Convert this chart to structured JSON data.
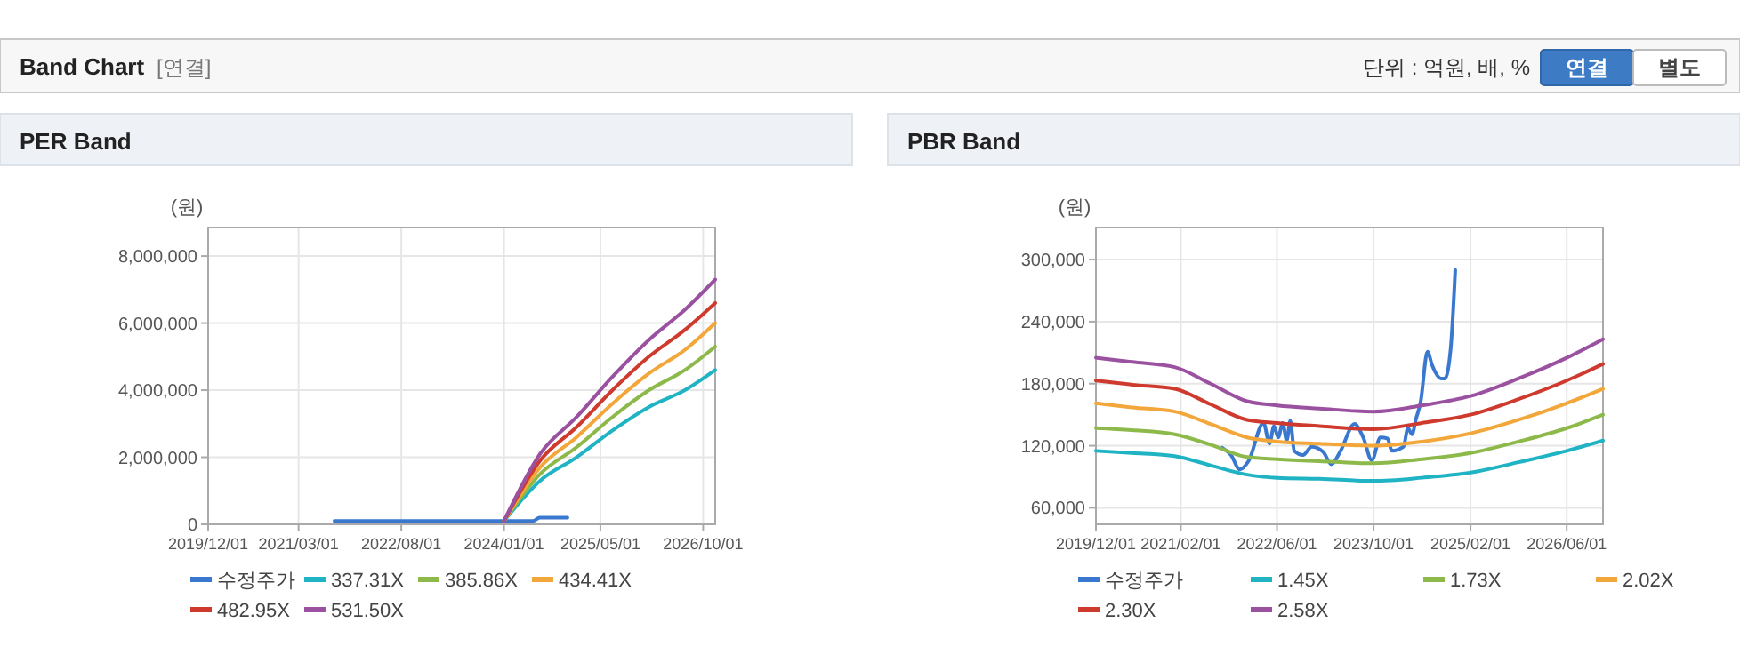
{
  "chart_data": [
    {
      "type": "other",
      "title": "Band Chart",
      "annotations": [
        "[연결]",
        "단위 : 억원, 배, %",
        "연결",
        "별도"
      ]
    },
    {
      "type": "line",
      "title": "PER Band",
      "ylabel": "(원)",
      "legend": "bottom",
      "grid": true,
      "x": [
        "2024-01-01",
        "2024-07-01",
        "2025-01-01",
        "2025-07-01",
        "2026-01-01",
        "2026-07-01",
        "2026-12-01"
      ],
      "xlim": [
        "2019-12-01",
        "2026-12-01"
      ],
      "xticks": [
        {
          "value": "2019-12-01",
          "label": "2019/12/01"
        },
        {
          "value": "2021-03-01",
          "label": "2021/03/01"
        },
        {
          "value": "2022-08-01",
          "label": "2022/08/01"
        },
        {
          "value": "2024-01-01",
          "label": "2024/01/01"
        },
        {
          "value": "2025-05-01",
          "label": "2025/05/01"
        },
        {
          "value": "2026-10-01",
          "label": "2026/10/01"
        }
      ],
      "ylim": [
        0,
        8850000
      ],
      "yticks": [
        0,
        {
          "value": 2000000,
          "label": "2,000,000"
        },
        {
          "value": 4000000,
          "label": "4,000,000"
        },
        {
          "value": 6000000,
          "label": "6,000,000"
        },
        {
          "value": 8000000,
          "label": "8,000,000"
        }
      ],
      "series": [
        {
          "name": "수정주가",
          "color": "#3a78cf",
          "x": [
            "2021-08-29",
            "2022-03-25",
            "2023-01-20",
            "2023-12-10",
            "2024-05-25",
            "2024-06-29",
            "2024-09-05",
            "2024-11-16"
          ],
          "values": [
            100000,
            100000,
            100000,
            100000,
            100000,
            200000,
            200000,
            200000
          ]
        },
        {
          "name": "337.31X",
          "color": "#1fb3c4",
          "values": [
            100000,
            1300000,
            2000000,
            2800000,
            3500000,
            4000000,
            4600000
          ]
        },
        {
          "name": "385.86X",
          "color": "#8db94b",
          "values": [
            100000,
            1500000,
            2300000,
            3200000,
            4000000,
            4600000,
            5300000
          ]
        },
        {
          "name": "434.41X",
          "color": "#f3a73b",
          "values": [
            100000,
            1700000,
            2600000,
            3600000,
            4500000,
            5200000,
            6000000
          ]
        },
        {
          "name": "482.95X",
          "color": "#cf3a2f",
          "values": [
            100000,
            1900000,
            2900000,
            4000000,
            5000000,
            5800000,
            6600000
          ]
        },
        {
          "name": "531.50X",
          "color": "#9a51a0",
          "values": [
            100000,
            2100000,
            3200000,
            4400000,
            5500000,
            6400000,
            7300000
          ]
        }
      ]
    },
    {
      "type": "line",
      "title": "PBR Band",
      "ylabel": "(원)",
      "legend": "bottom",
      "grid": true,
      "x": [
        "2019-12-01",
        "2020-06-01",
        "2021-01-01",
        "2021-07-01",
        "2022-01-01",
        "2022-06-01",
        "2023-01-01",
        "2023-10-01",
        "2024-06-01",
        "2025-02-01",
        "2025-10-01",
        "2026-06-01",
        "2026-12-01"
      ],
      "xlim": [
        "2019-12-01",
        "2026-12-01"
      ],
      "xticks": [
        {
          "value": "2019-12-01",
          "label": "2019/12/01"
        },
        {
          "value": "2021-02-01",
          "label": "2021/02/01"
        },
        {
          "value": "2022-06-01",
          "label": "2022/06/01"
        },
        {
          "value": "2023-10-01",
          "label": "2023/10/01"
        },
        {
          "value": "2025-02-01",
          "label": "2025/02/01"
        },
        {
          "value": "2026-06-01",
          "label": "2026/06/01"
        }
      ],
      "ylim": [
        44000,
        331000
      ],
      "yticks": [
        {
          "value": 60000,
          "label": "60,000"
        },
        {
          "value": 120000,
          "label": "120,000"
        },
        {
          "value": 180000,
          "label": "180,000"
        },
        {
          "value": 240000,
          "label": "240,000"
        },
        {
          "value": 300000,
          "label": "300,000"
        }
      ],
      "series": [
        {
          "name": "수정주가",
          "color": "#3a78cf",
          "x": [
            "2021-08-29",
            "2021-10-12",
            "2021-11-25",
            "2022-01-08",
            "2022-03-25",
            "2022-04-24",
            "2022-05-17",
            "2022-06-07",
            "2022-06-30",
            "2022-07-20",
            "2022-08-07",
            "2022-08-27",
            "2022-10-10",
            "2022-11-23",
            "2023-01-20",
            "2023-03-02",
            "2023-04-15",
            "2023-06-27",
            "2023-08-10",
            "2023-09-22",
            "2023-11-05",
            "2023-12-10",
            "2024-01-02",
            "2024-02-29",
            "2024-03-22",
            "2024-04-12",
            "2024-05-02",
            "2024-05-25",
            "2024-06-29",
            "2024-07-22",
            "2024-09-05",
            "2024-09-25",
            "2024-10-24",
            "2024-11-16"
          ],
          "values": [
            118000,
            111000,
            97000,
            105000,
            142000,
            122000,
            139000,
            128000,
            142000,
            125000,
            144000,
            115000,
            111000,
            119000,
            114000,
            102000,
            114000,
            141000,
            128000,
            106000,
            128000,
            127000,
            115000,
            119000,
            137000,
            131000,
            146000,
            162000,
            211000,
            198000,
            185000,
            185000,
            214000,
            290000
          ]
        },
        {
          "name": "1.45X",
          "color": "#1fb3c4",
          "values": [
            115000,
            113000,
            110000,
            101000,
            92000,
            89000,
            88000,
            86000,
            89000,
            94000,
            104000,
            115000,
            125000
          ]
        },
        {
          "name": "1.73X",
          "color": "#8db94b",
          "values": [
            137000,
            135000,
            131000,
            121000,
            109000,
            107000,
            105000,
            103000,
            107000,
            113000,
            124000,
            137000,
            150000
          ]
        },
        {
          "name": "2.02X",
          "color": "#f3a73b",
          "values": [
            161000,
            157000,
            153000,
            141000,
            128000,
            124000,
            122000,
            120000,
            124000,
            132000,
            145000,
            161000,
            175000
          ]
        },
        {
          "name": "2.30X",
          "color": "#cf3a2f",
          "values": [
            183000,
            179000,
            175000,
            160000,
            145000,
            142000,
            139000,
            136000,
            142000,
            150000,
            165000,
            183000,
            199000
          ]
        },
        {
          "name": "2.58X",
          "color": "#9a51a0",
          "values": [
            205000,
            201000,
            196000,
            180000,
            163000,
            159000,
            156000,
            153000,
            159000,
            168000,
            185000,
            205000,
            223000
          ]
        }
      ]
    }
  ]
}
